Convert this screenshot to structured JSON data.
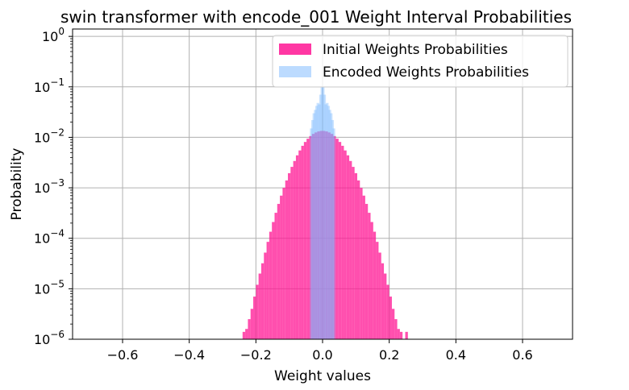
{
  "chart_data": {
    "type": "bar",
    "title": "swin transformer with encode_001 Weight Interval Probabilities",
    "xlabel": "Weight values",
    "ylabel": "Probability",
    "xlim": [
      -0.75,
      0.75
    ],
    "ylim": [
      1e-06,
      1.4
    ],
    "y_scale": "log",
    "grid": true,
    "legend_position": "top-right",
    "x_ticks": [
      -0.6,
      -0.4,
      -0.2,
      0.0,
      0.2,
      0.4,
      0.6
    ],
    "x_tick_labels": [
      "−0.6",
      "−0.4",
      "−0.2",
      "0.0",
      "0.2",
      "0.4",
      "0.6"
    ],
    "y_ticks": [
      {
        "value": 1e-06,
        "base": "10",
        "exp": "−6"
      },
      {
        "value": 1e-05,
        "base": "10",
        "exp": "−5"
      },
      {
        "value": 0.0001,
        "base": "10",
        "exp": "−4"
      },
      {
        "value": 0.001,
        "base": "10",
        "exp": "−3"
      },
      {
        "value": 0.01,
        "base": "10",
        "exp": "−2"
      },
      {
        "value": 0.1,
        "base": "10",
        "exp": "−1"
      },
      {
        "value": 1,
        "base": "10",
        "exp": "0"
      }
    ],
    "series": [
      {
        "name": "Initial Weights Probabilities",
        "color": "#ff1493",
        "opacity": 0.75,
        "bin_width": 0.004,
        "x": [
          -0.236,
          -0.228,
          -0.22,
          -0.212,
          -0.204,
          -0.196,
          -0.188,
          -0.18,
          -0.172,
          -0.164,
          -0.156,
          -0.148,
          -0.14,
          -0.132,
          -0.124,
          -0.116,
          -0.108,
          -0.1,
          -0.092,
          -0.084,
          -0.076,
          -0.068,
          -0.06,
          -0.052,
          -0.044,
          -0.036,
          -0.028,
          -0.02,
          -0.012,
          -0.004,
          0.004,
          0.012,
          0.02,
          0.028,
          0.036,
          0.044,
          0.052,
          0.06,
          0.068,
          0.076,
          0.084,
          0.092,
          0.1,
          0.108,
          0.116,
          0.124,
          0.132,
          0.14,
          0.148,
          0.156,
          0.164,
          0.172,
          0.18,
          0.188,
          0.196,
          0.204,
          0.212,
          0.22,
          0.228,
          0.236,
          0.252
        ],
        "values": [
          1.4e-06,
          1.6e-06,
          2.5e-06,
          4e-06,
          7e-06,
          1.2e-05,
          2e-05,
          3.2e-05,
          5.2e-05,
          8.5e-05,
          0.000135,
          0.00021,
          0.00032,
          0.00048,
          0.0007,
          0.001,
          0.0014,
          0.00195,
          0.0026,
          0.0034,
          0.0044,
          0.0055,
          0.0068,
          0.0081,
          0.0094,
          0.0106,
          0.0117,
          0.0125,
          0.0131,
          0.0134,
          0.0134,
          0.0131,
          0.0125,
          0.0117,
          0.0106,
          0.0094,
          0.0081,
          0.0068,
          0.0055,
          0.0044,
          0.0034,
          0.0026,
          0.00195,
          0.0014,
          0.001,
          0.0007,
          0.00048,
          0.00032,
          0.00021,
          0.000135,
          8.5e-05,
          5.2e-05,
          3.2e-05,
          2e-05,
          1.2e-05,
          7e-06,
          4e-06,
          2.5e-06,
          1.6e-06,
          1.4e-06,
          1.4e-06
        ]
      },
      {
        "name": "Encoded Weights Probabilities",
        "color": "#7ab8ff",
        "opacity": 0.4,
        "bin_width": 0.004,
        "x": [
          -0.034,
          -0.03,
          -0.026,
          -0.022,
          -0.018,
          -0.014,
          -0.01,
          -0.006,
          -0.002,
          0.002,
          0.006,
          0.01,
          0.014,
          0.018,
          0.022,
          0.026,
          0.03,
          0.034
        ],
        "values": [
          0.015,
          0.022,
          0.03,
          0.035,
          0.042,
          0.048,
          0.045,
          0.07,
          0.1,
          0.1,
          0.07,
          0.045,
          0.048,
          0.042,
          0.035,
          0.03,
          0.022,
          0.015
        ]
      }
    ]
  }
}
